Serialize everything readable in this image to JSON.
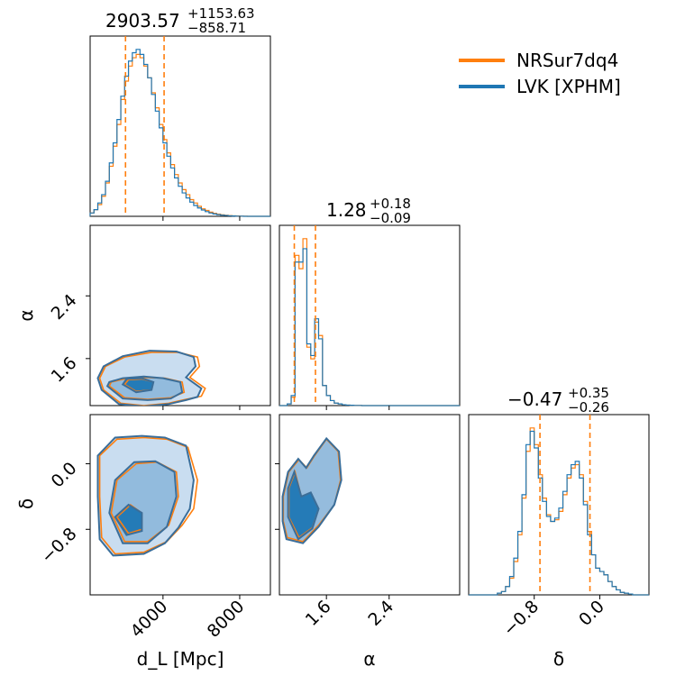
{
  "colors": {
    "nrsur": "#ff7f0e",
    "lvk": "#1f77b4"
  },
  "legend": {
    "placement": "top-right",
    "entries": [
      {
        "label": "NRSur7dq4",
        "color": "#ff7f0e"
      },
      {
        "label": "LVK [XPHM]",
        "color": "#1f77b4"
      }
    ]
  },
  "chart_data": {
    "type": "corner",
    "parameters": [
      {
        "key": "dL",
        "label": "d_L [Mpc]",
        "range": [
          200,
          9600
        ],
        "ticks": [
          4000,
          8000
        ],
        "tick_labels": [
          "4000",
          "8000"
        ],
        "title_median": "2903.57",
        "title_plus": "+1153.63",
        "title_minus": "−858.71",
        "quantile_lines": [
          2045,
          4057
        ],
        "hist_bins": [
          200,
          400,
          600,
          800,
          1000,
          1200,
          1400,
          1600,
          1800,
          2000,
          2200,
          2400,
          2600,
          2800,
          3000,
          3200,
          3400,
          3600,
          3800,
          4000,
          4200,
          4400,
          4600,
          4800,
          5000,
          5200,
          5400,
          5600,
          5800,
          6000,
          6200,
          6400,
          6600,
          6800,
          7000,
          7200,
          7400,
          7600,
          7800,
          8000,
          8200,
          8400,
          8600,
          8800,
          9000,
          9200,
          9400,
          9600
        ],
        "hist_nrsur": [
          0.02,
          0.04,
          0.07,
          0.12,
          0.2,
          0.3,
          0.42,
          0.55,
          0.7,
          0.81,
          0.9,
          0.95,
          0.97,
          0.95,
          0.9,
          0.83,
          0.74,
          0.65,
          0.55,
          0.46,
          0.38,
          0.31,
          0.25,
          0.2,
          0.16,
          0.13,
          0.1,
          0.08,
          0.06,
          0.045,
          0.035,
          0.025,
          0.018,
          0.013,
          0.009,
          0.006,
          0.004,
          0.003,
          0.002,
          0.001,
          0.001,
          0.0,
          0.0,
          0.0,
          0.0,
          0.0,
          0.0
        ],
        "hist_lvk": [
          0.02,
          0.04,
          0.08,
          0.13,
          0.21,
          0.32,
          0.44,
          0.58,
          0.72,
          0.84,
          0.93,
          0.98,
          1.0,
          0.97,
          0.91,
          0.83,
          0.73,
          0.63,
          0.53,
          0.44,
          0.36,
          0.29,
          0.23,
          0.18,
          0.14,
          0.11,
          0.085,
          0.065,
          0.05,
          0.038,
          0.028,
          0.02,
          0.014,
          0.01,
          0.007,
          0.005,
          0.003,
          0.002,
          0.001,
          0.001,
          0.0,
          0.0,
          0.0,
          0.0,
          0.0,
          0.0,
          0.0
        ]
      },
      {
        "key": "alpha",
        "label": "α",
        "range": [
          1.0,
          3.3
        ],
        "ticks": [
          1.6,
          2.4
        ],
        "tick_labels": [
          "1.6",
          "2.4"
        ],
        "title_median": "1.28",
        "title_plus": "+0.18",
        "title_minus": "−0.09",
        "quantile_lines": [
          1.19,
          1.46
        ],
        "hist_bins": [
          1.0,
          1.05,
          1.1,
          1.15,
          1.2,
          1.25,
          1.3,
          1.35,
          1.4,
          1.45,
          1.5,
          1.55,
          1.6,
          1.65,
          1.7,
          1.75,
          1.8,
          1.85,
          1.9,
          1.95,
          2.0,
          2.05,
          2.1,
          2.15,
          2.2,
          2.25,
          2.3,
          2.35,
          2.4,
          2.45,
          2.5,
          2.55,
          2.6,
          2.65,
          2.7,
          2.75,
          2.8,
          2.85,
          2.9,
          2.95,
          3.0,
          3.05,
          3.1,
          3.15,
          3.2,
          3.25,
          3.3
        ],
        "hist_nrsur": [
          0.0,
          0.0,
          0.01,
          0.05,
          0.9,
          0.82,
          1.0,
          0.35,
          0.28,
          0.5,
          0.42,
          0.12,
          0.06,
          0.03,
          0.015,
          0.01,
          0.005,
          0.003,
          0.002,
          0.001,
          0.001,
          0.0,
          0.0,
          0.0,
          0.0,
          0.0,
          0.0,
          0.0,
          0.0,
          0.0,
          0.0,
          0.0,
          0.0,
          0.0,
          0.0,
          0.0,
          0.0,
          0.0,
          0.0,
          0.0,
          0.0,
          0.0,
          0.0,
          0.0,
          0.0,
          0.0
        ],
        "hist_lvk": [
          0.0,
          0.0,
          0.01,
          0.06,
          0.86,
          0.86,
          0.94,
          0.37,
          0.3,
          0.52,
          0.4,
          0.12,
          0.06,
          0.03,
          0.015,
          0.01,
          0.005,
          0.003,
          0.002,
          0.001,
          0.001,
          0.0,
          0.0,
          0.0,
          0.0,
          0.0,
          0.0,
          0.0,
          0.0,
          0.0,
          0.0,
          0.0,
          0.0,
          0.0,
          0.0,
          0.0,
          0.0,
          0.0,
          0.0,
          0.0,
          0.0,
          0.0,
          0.0,
          0.0,
          0.0,
          0.0
        ]
      },
      {
        "key": "delta",
        "label": "δ",
        "range": [
          -1.6,
          0.6
        ],
        "ticks": [
          -0.8,
          0.0
        ],
        "tick_labels": [
          "−0.8",
          "0.0"
        ],
        "title_median": "−0.47",
        "title_plus": "+0.35",
        "title_minus": "−0.26",
        "quantile_lines": [
          -0.73,
          -0.12
        ],
        "hist_bins": [
          -1.6,
          -1.55,
          -1.5,
          -1.45,
          -1.4,
          -1.35,
          -1.3,
          -1.25,
          -1.2,
          -1.15,
          -1.1,
          -1.05,
          -1.0,
          -0.95,
          -0.9,
          -0.85,
          -0.8,
          -0.75,
          -0.7,
          -0.65,
          -0.6,
          -0.55,
          -0.5,
          -0.45,
          -0.4,
          -0.35,
          -0.3,
          -0.25,
          -0.2,
          -0.15,
          -0.1,
          -0.05,
          0.0,
          0.05,
          0.1,
          0.15,
          0.2,
          0.25,
          0.3,
          0.35,
          0.4,
          0.45,
          0.5,
          0.55,
          0.6
        ],
        "hist_nrsur": [
          0.0,
          0.0,
          0.0,
          0.0,
          0.0,
          0.0,
          0.0,
          0.01,
          0.02,
          0.05,
          0.1,
          0.2,
          0.36,
          0.58,
          0.86,
          1.0,
          0.9,
          0.72,
          0.58,
          0.48,
          0.44,
          0.45,
          0.5,
          0.6,
          0.7,
          0.76,
          0.78,
          0.72,
          0.56,
          0.38,
          0.24,
          0.16,
          0.14,
          0.12,
          0.08,
          0.05,
          0.03,
          0.015,
          0.01,
          0.005,
          0.0,
          0.0,
          0.0,
          0.0
        ],
        "hist_lvk": [
          0.0,
          0.0,
          0.0,
          0.0,
          0.0,
          0.0,
          0.0,
          0.01,
          0.02,
          0.05,
          0.11,
          0.22,
          0.38,
          0.6,
          0.9,
          0.98,
          0.88,
          0.7,
          0.56,
          0.47,
          0.44,
          0.46,
          0.52,
          0.62,
          0.72,
          0.78,
          0.8,
          0.7,
          0.54,
          0.36,
          0.24,
          0.16,
          0.14,
          0.12,
          0.08,
          0.05,
          0.03,
          0.015,
          0.01,
          0.005,
          0.0,
          0.0,
          0.0,
          0.0
        ]
      }
    ],
    "contours_2d": {
      "dL_alpha": {
        "nrsur": [
          [
            [
              900,
              1.2
            ],
            [
              1800,
              1.03
            ],
            [
              3000,
              1.0
            ],
            [
              4300,
              1.03
            ],
            [
              5200,
              1.08
            ],
            [
              6000,
              1.12
            ],
            [
              6200,
              1.22
            ],
            [
              5400,
              1.36
            ],
            [
              5900,
              1.5
            ],
            [
              5800,
              1.62
            ],
            [
              4800,
              1.68
            ],
            [
              3400,
              1.68
            ],
            [
              2000,
              1.62
            ],
            [
              1000,
              1.5
            ],
            [
              700,
              1.35
            ]
          ],
          [
            [
              1200,
              1.25
            ],
            [
              2000,
              1.1
            ],
            [
              3200,
              1.08
            ],
            [
              4400,
              1.1
            ],
            [
              5100,
              1.17
            ],
            [
              5000,
              1.3
            ],
            [
              4100,
              1.35
            ],
            [
              3000,
              1.36
            ],
            [
              2000,
              1.34
            ],
            [
              1300,
              1.3
            ]
          ],
          [
            [
              2000,
              1.27
            ],
            [
              2600,
              1.18
            ],
            [
              3400,
              1.2
            ],
            [
              3500,
              1.3
            ],
            [
              2900,
              1.34
            ],
            [
              2200,
              1.33
            ]
          ]
        ],
        "lvk": [
          [
            [
              800,
              1.2
            ],
            [
              1700,
              1.02
            ],
            [
              3000,
              0.99
            ],
            [
              4300,
              1.02
            ],
            [
              5200,
              1.07
            ],
            [
              5800,
              1.11
            ],
            [
              6000,
              1.22
            ],
            [
              5200,
              1.36
            ],
            [
              5700,
              1.5
            ],
            [
              5600,
              1.62
            ],
            [
              4700,
              1.69
            ],
            [
              3300,
              1.7
            ],
            [
              1900,
              1.63
            ],
            [
              900,
              1.5
            ],
            [
              600,
              1.35
            ]
          ],
          [
            [
              1100,
              1.25
            ],
            [
              1900,
              1.09
            ],
            [
              3200,
              1.07
            ],
            [
              4400,
              1.09
            ],
            [
              5000,
              1.17
            ],
            [
              4900,
              1.3
            ],
            [
              4000,
              1.35
            ],
            [
              3000,
              1.37
            ],
            [
              1900,
              1.35
            ],
            [
              1200,
              1.3
            ]
          ],
          [
            [
              1900,
              1.27
            ],
            [
              2600,
              1.17
            ],
            [
              3400,
              1.2
            ],
            [
              3500,
              1.3
            ],
            [
              2900,
              1.35
            ],
            [
              2100,
              1.34
            ]
          ]
        ]
      },
      "dL_delta": {
        "nrsur": [
          [
            [
              700,
              -0.4
            ],
            [
              800,
              -0.9
            ],
            [
              1500,
              -1.1
            ],
            [
              3000,
              -1.08
            ],
            [
              4200,
              -0.95
            ],
            [
              5000,
              -0.75
            ],
            [
              5600,
              -0.55
            ],
            [
              5800,
              -0.2
            ],
            [
              5300,
              0.2
            ],
            [
              4200,
              0.3
            ],
            [
              3000,
              0.32
            ],
            [
              1600,
              0.3
            ],
            [
              700,
              0.1
            ]
          ],
          [
            [
              1300,
              -0.6
            ],
            [
              2000,
              -0.95
            ],
            [
              3200,
              -0.95
            ],
            [
              4300,
              -0.75
            ],
            [
              4800,
              -0.4
            ],
            [
              4700,
              -0.1
            ],
            [
              3700,
              0.02
            ],
            [
              2600,
              0.0
            ],
            [
              1600,
              -0.2
            ]
          ],
          [
            [
              1600,
              -0.65
            ],
            [
              2200,
              -0.85
            ],
            [
              2900,
              -0.8
            ],
            [
              2900,
              -0.6
            ],
            [
              2300,
              -0.5
            ]
          ]
        ],
        "lvk": [
          [
            [
              600,
              -0.4
            ],
            [
              700,
              -0.92
            ],
            [
              1400,
              -1.12
            ],
            [
              3000,
              -1.1
            ],
            [
              4100,
              -0.97
            ],
            [
              4800,
              -0.78
            ],
            [
              5400,
              -0.55
            ],
            [
              5600,
              -0.2
            ],
            [
              5200,
              0.22
            ],
            [
              4100,
              0.32
            ],
            [
              2900,
              0.34
            ],
            [
              1500,
              0.32
            ],
            [
              600,
              0.1
            ]
          ],
          [
            [
              1200,
              -0.6
            ],
            [
              1900,
              -0.97
            ],
            [
              3200,
              -0.97
            ],
            [
              4200,
              -0.77
            ],
            [
              4700,
              -0.4
            ],
            [
              4600,
              -0.1
            ],
            [
              3600,
              0.03
            ],
            [
              2500,
              0.02
            ],
            [
              1500,
              -0.2
            ]
          ],
          [
            [
              1500,
              -0.65
            ],
            [
              2100,
              -0.87
            ],
            [
              2900,
              -0.82
            ],
            [
              2900,
              -0.6
            ],
            [
              2200,
              -0.5
            ]
          ]
        ]
      },
      "alpha_delta": {
        "nrsur": [
          [
            [
              1.05,
              -0.7
            ],
            [
              1.1,
              -0.9
            ],
            [
              1.3,
              -0.95
            ],
            [
              1.5,
              -0.75
            ],
            [
              1.7,
              -0.5
            ],
            [
              1.78,
              -0.2
            ],
            [
              1.75,
              0.15
            ],
            [
              1.6,
              0.3
            ],
            [
              1.45,
              0.1
            ],
            [
              1.35,
              -0.05
            ],
            [
              1.25,
              0.05
            ],
            [
              1.12,
              -0.1
            ],
            [
              1.05,
              -0.4
            ]
          ],
          [
            [
              1.12,
              -0.65
            ],
            [
              1.25,
              -0.9
            ],
            [
              1.42,
              -0.78
            ],
            [
              1.5,
              -0.55
            ],
            [
              1.4,
              -0.35
            ],
            [
              1.28,
              -0.4
            ],
            [
              1.2,
              -0.1
            ],
            [
              1.12,
              -0.3
            ]
          ]
        ],
        "lvk": [
          [
            [
              1.04,
              -0.7
            ],
            [
              1.09,
              -0.92
            ],
            [
              1.3,
              -0.97
            ],
            [
              1.5,
              -0.77
            ],
            [
              1.7,
              -0.5
            ],
            [
              1.79,
              -0.2
            ],
            [
              1.76,
              0.15
            ],
            [
              1.6,
              0.31
            ],
            [
              1.44,
              0.1
            ],
            [
              1.34,
              -0.05
            ],
            [
              1.24,
              0.06
            ],
            [
              1.11,
              -0.1
            ],
            [
              1.04,
              -0.4
            ]
          ],
          [
            [
              1.11,
              -0.65
            ],
            [
              1.24,
              -0.92
            ],
            [
              1.42,
              -0.79
            ],
            [
              1.5,
              -0.55
            ],
            [
              1.4,
              -0.35
            ],
            [
              1.28,
              -0.4
            ],
            [
              1.19,
              -0.1
            ],
            [
              1.11,
              -0.3
            ]
          ]
        ]
      }
    }
  }
}
